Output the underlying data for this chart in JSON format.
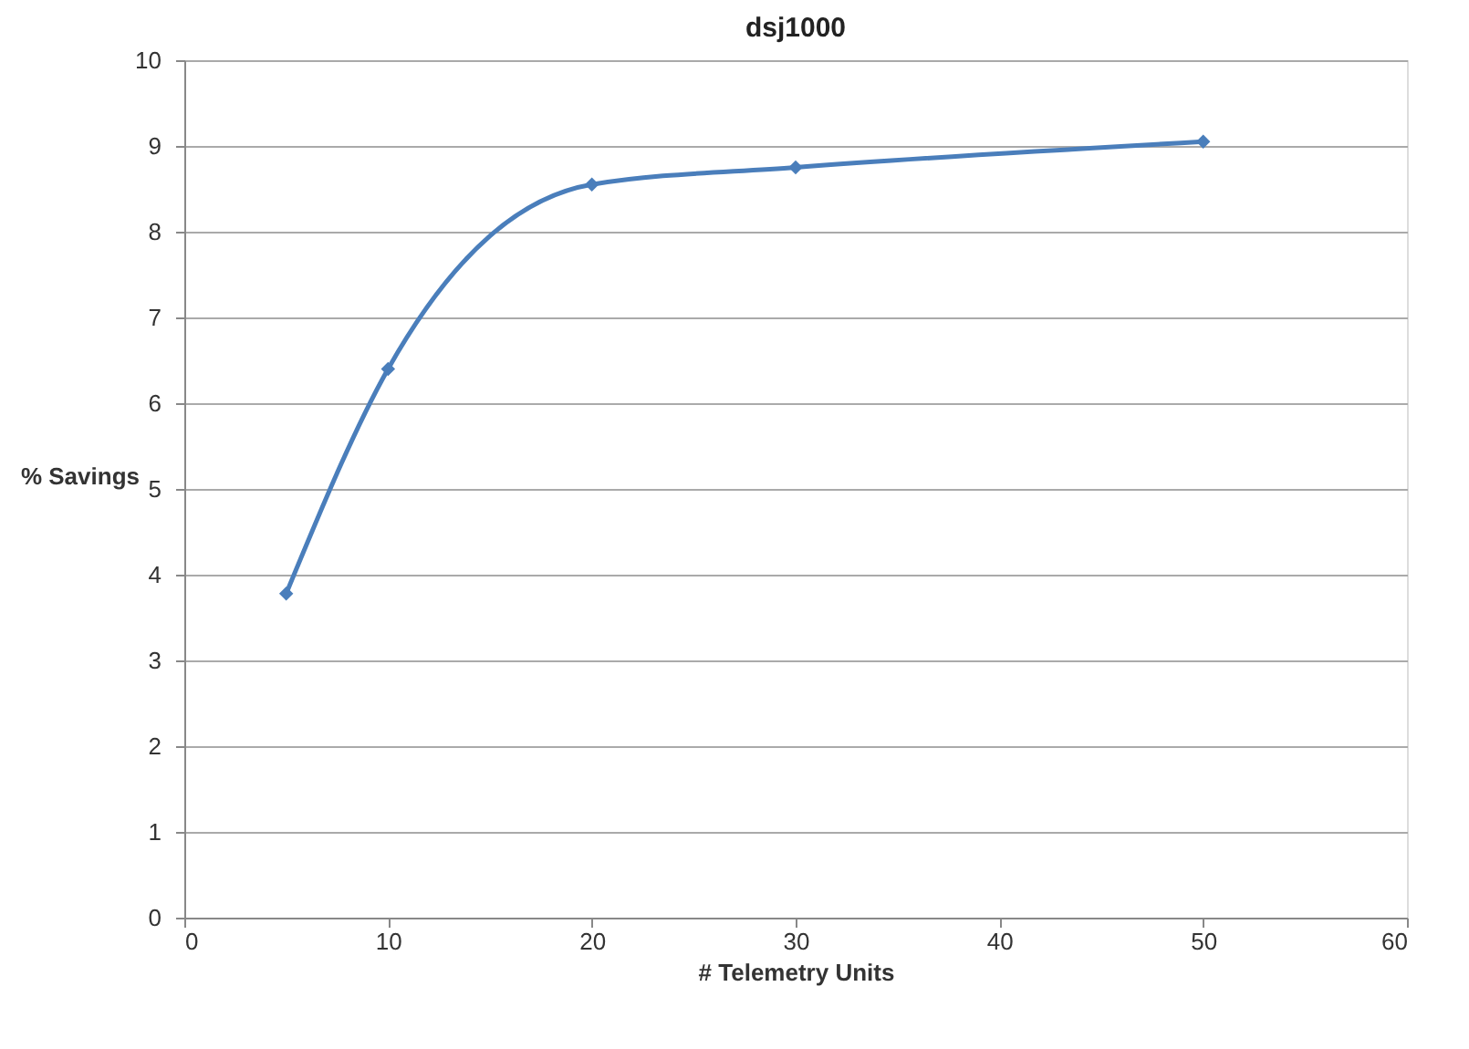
{
  "chart_data": {
    "type": "line",
    "title": "dsj1000",
    "xlabel": "# Telemetry Units",
    "ylabel": "% Savings",
    "x": [
      5,
      10,
      20,
      30,
      50
    ],
    "series": [
      {
        "color": "#4a7ebb",
        "values": [
          3.78,
          6.4,
          8.55,
          8.75,
          9.05
        ]
      }
    ],
    "xlim": [
      0,
      60
    ],
    "xticks": [
      0,
      10,
      20,
      30,
      40,
      50,
      60
    ],
    "ylim": [
      0,
      10
    ],
    "yticks": [
      0,
      1,
      2,
      3,
      4,
      5,
      6,
      7,
      8,
      9,
      10
    ],
    "grid": "y",
    "marker": "diamond",
    "line_style": "solid"
  }
}
